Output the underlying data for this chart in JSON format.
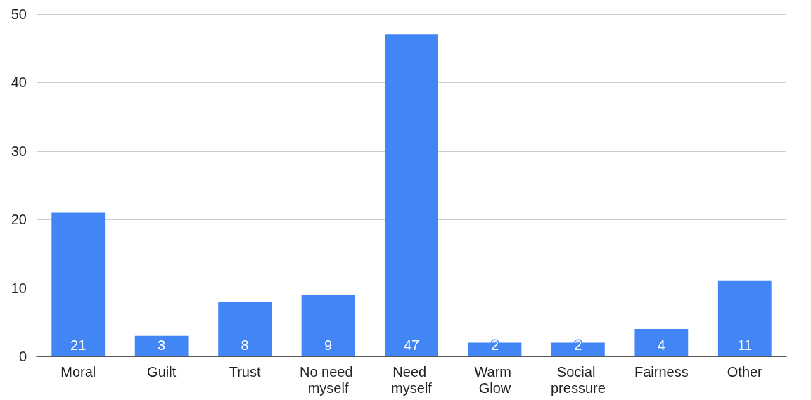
{
  "chart_data": {
    "type": "bar",
    "categories": [
      "Moral",
      "Guilt",
      "Trust",
      "No need myself",
      "Need myself",
      "Warm Glow",
      "Social pressure",
      "Fairness",
      "Other"
    ],
    "values": [
      21,
      3,
      8,
      9,
      47,
      2,
      2,
      4,
      11
    ],
    "color": "#4285f4",
    "ylim": [
      0,
      50
    ],
    "yticks": [
      0,
      10,
      20,
      30,
      40,
      50
    ],
    "grid": "y",
    "data_labels": true
  }
}
